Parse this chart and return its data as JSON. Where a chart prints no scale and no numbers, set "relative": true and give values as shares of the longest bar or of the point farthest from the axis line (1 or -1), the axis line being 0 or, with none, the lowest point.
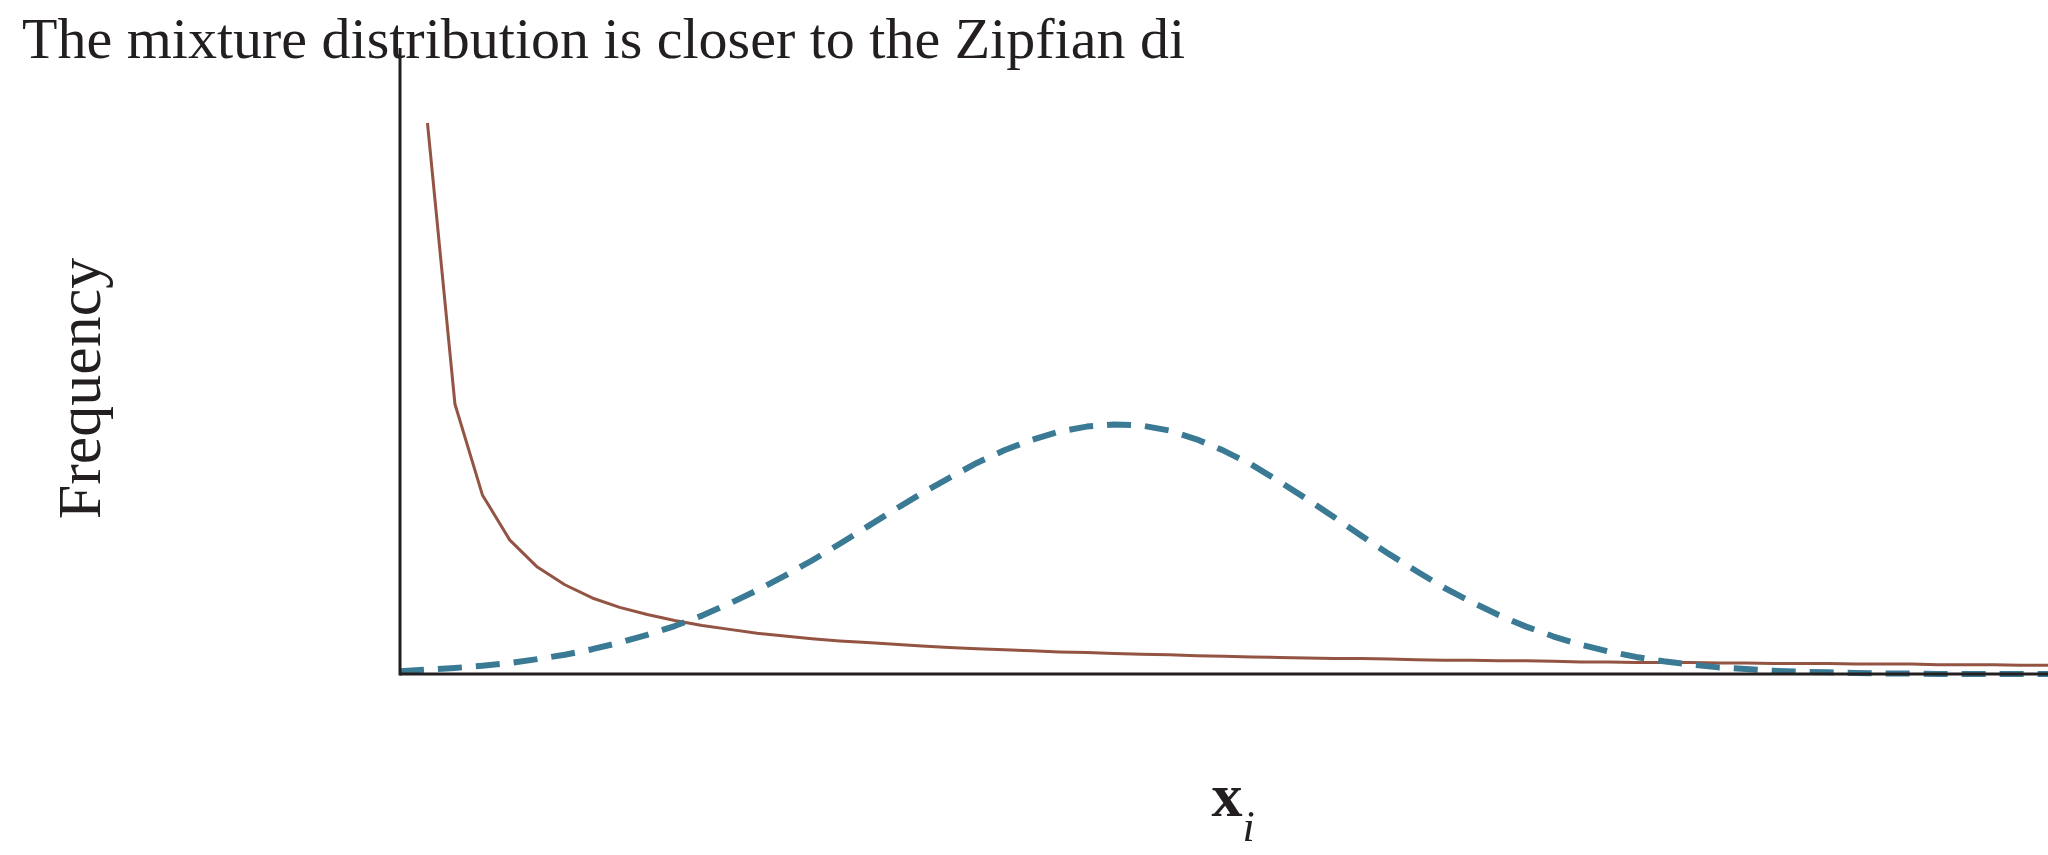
{
  "chart_data": {
    "type": "line",
    "title": "The mixture distribution is closer to the Zipfian di",
    "xlabel": "x$_{i}$",
    "ylabel": "Frequency",
    "relative": true,
    "categories": [
      null,
      null,
      null,
      null,
      null,
      null,
      null,
      null,
      null,
      null,
      null,
      null,
      null,
      null,
      null,
      null,
      null,
      null,
      null,
      null,
      null,
      null,
      null,
      null,
      null,
      null,
      null,
      null,
      null,
      null,
      null,
      null,
      null,
      null,
      null,
      null,
      null,
      null,
      null,
      null,
      null,
      null,
      null,
      null,
      null,
      null,
      null,
      null,
      null,
      null,
      null,
      null,
      null,
      null,
      null,
      null,
      null,
      null,
      null,
      null,
      null
    ],
    "series": [
      {
        "color": "#935443",
        "line_style": "solid",
        "values": [
          null,
          1.0,
          0.49,
          0.325,
          0.243,
          0.194,
          0.162,
          0.138,
          0.121,
          0.108,
          0.097,
          0.088,
          0.081,
          0.074,
          0.069,
          0.064,
          0.06,
          0.057,
          0.054,
          0.051,
          0.048,
          0.046,
          0.044,
          0.042,
          0.04,
          0.039,
          0.037,
          0.036,
          0.035,
          0.033,
          0.032,
          0.031,
          0.03,
          0.029,
          0.028,
          0.028,
          0.027,
          0.026,
          0.025,
          0.025,
          0.024,
          0.024,
          0.023,
          0.022,
          0.022,
          0.021,
          0.021,
          0.021,
          0.02,
          0.02,
          0.019,
          0.019,
          0.019,
          0.018,
          0.018,
          0.018,
          0.017,
          0.017,
          0.017,
          0.016,
          0.016
        ]
      },
      {
        "color": "#3a7a94",
        "line_style": "dashed",
        "values": [
          0.005,
          0.008,
          0.011,
          0.015,
          0.02,
          0.027,
          0.035,
          0.045,
          0.057,
          0.071,
          0.087,
          0.106,
          0.128,
          0.152,
          0.178,
          0.206,
          0.236,
          0.267,
          0.298,
          0.328,
          0.356,
          0.383,
          0.406,
          0.425,
          0.44,
          0.449,
          0.453,
          0.451,
          0.442,
          0.426,
          0.405,
          0.38,
          0.35,
          0.318,
          0.285,
          0.251,
          0.218,
          0.187,
          0.157,
          0.131,
          0.107,
          0.086,
          0.068,
          0.053,
          0.041,
          0.031,
          0.023,
          0.017,
          0.012,
          0.009,
          0.006,
          0.004,
          0.003,
          0.002,
          0.001,
          0.001,
          0,
          0,
          0,
          0,
          0
        ]
      }
    ]
  }
}
